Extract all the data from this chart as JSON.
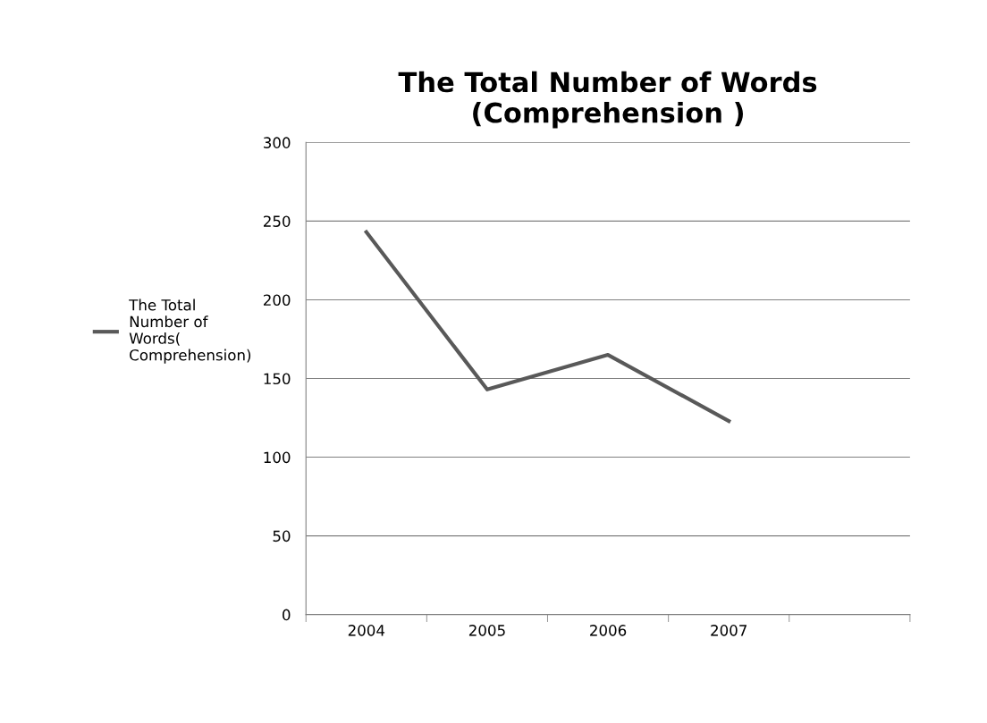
{
  "chart_data": {
    "type": "line",
    "title": "The Total Number of Words\n(Comprehension )",
    "categories": [
      "2004",
      "2005",
      "2006",
      "2007",
      null
    ],
    "series": [
      {
        "name": "The Total\nNumber of\nWords(\nComprehension)",
        "color": "#595959",
        "values": [
          243,
          143,
          165,
          123,
          null
        ]
      }
    ],
    "ylim": [
      0,
      300
    ],
    "yticks": [
      0,
      50,
      100,
      150,
      200,
      250,
      300
    ],
    "grid": "y",
    "legend": "left",
    "marker": "none",
    "line_style": "solid"
  }
}
